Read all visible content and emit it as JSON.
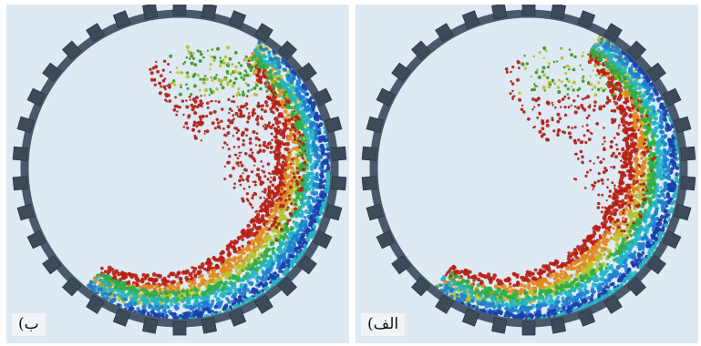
{
  "panels": [
    {
      "id": "panel-right",
      "label": "الف)",
      "colors": {
        "background": "#dde9f3",
        "drum_ring": "#4a5a6c",
        "drum_teeth": "#3c4a5a",
        "particle_scale": [
          "#1a3fa8",
          "#1f7fd0",
          "#22b5c8",
          "#2fae4a",
          "#b8c12a",
          "#e08a1e",
          "#b81e12"
        ],
        "scattered_particles": "#b1241a",
        "upper_particles": "#3f9a2a"
      }
    },
    {
      "id": "panel-left",
      "label": "ب)",
      "colors": {
        "background": "#dde9f3",
        "drum_ring": "#4a5a6c",
        "drum_teeth": "#3c4a5a",
        "particle_scale": [
          "#1a3fa8",
          "#1f7fd0",
          "#22b5c8",
          "#2fae4a",
          "#b8c12a",
          "#e08a1e",
          "#b81e12"
        ],
        "scattered_particles": "#b1241a",
        "upper_particles": "#3f9a2a"
      }
    }
  ]
}
